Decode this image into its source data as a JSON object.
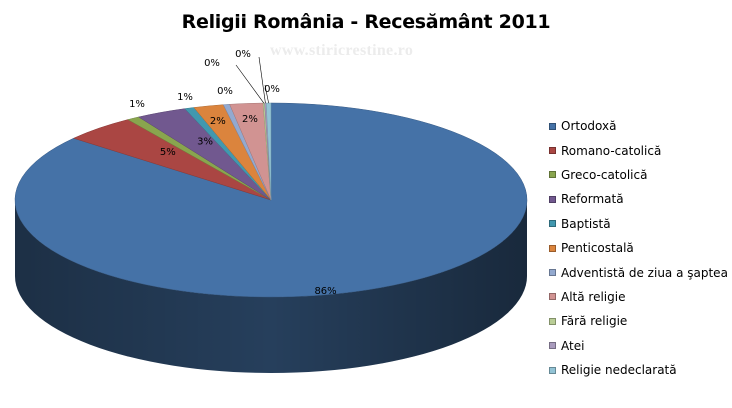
{
  "chart_data": {
    "type": "pie",
    "title": "Religii România - Recesământ 2011",
    "watermark": "www.stiricrestine.ro",
    "legend_position": "right",
    "three_d": true,
    "categories": [
      "Ortodoxă",
      "Romano-catolică",
      "Greco-catolică",
      "Reformată",
      "Baptistă",
      "Penticostală",
      "Adventistă de ziua a şaptea",
      "Altă religie",
      "Fără religie",
      "Atei",
      "Religie nedeclarată"
    ],
    "values": [
      86.5,
      4.6,
      0.8,
      3.2,
      0.6,
      1.9,
      0.4,
      2.1,
      0.1,
      0.1,
      0.3
    ],
    "data_labels": [
      "86%",
      "5%",
      "1%",
      "3%",
      "1%",
      "2%",
      "0%",
      "2%",
      "0%",
      "0%",
      "0%"
    ],
    "colors": [
      "#4572a7",
      "#aa4643",
      "#89a54e",
      "#71588f",
      "#4198af",
      "#db843d",
      "#93a9cf",
      "#d19392",
      "#b9cd96",
      "#a99bbd",
      "#92c3d5"
    ]
  }
}
